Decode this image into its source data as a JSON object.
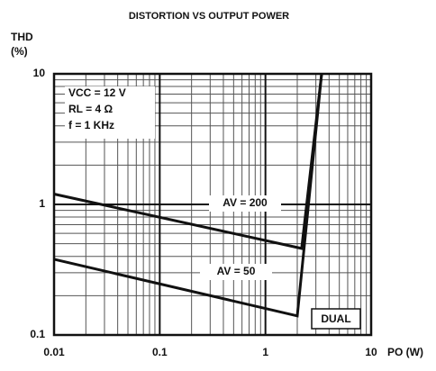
{
  "chart_data": {
    "type": "line",
    "title": "DISTORTION VS OUTPUT POWER",
    "ylabel": [
      "THD",
      "(%)"
    ],
    "xlabel": "PO (W)",
    "xscale": "log",
    "yscale": "log",
    "xlim": [
      0.01,
      10
    ],
    "ylim": [
      0.1,
      10
    ],
    "xticks": [
      0.01,
      0.1,
      1,
      10
    ],
    "yticks": [
      0.1,
      1,
      10
    ],
    "grid": true,
    "annotations": [
      "VCC = 12 V",
      "RL = 4 Ω",
      "f = 1 KHz",
      "DUAL"
    ],
    "series": [
      {
        "name": "AV = 200",
        "color": "#111111",
        "x": [
          0.01,
          2.2,
          3.4
        ],
        "values": [
          1.2,
          0.46,
          10
        ]
      },
      {
        "name": "AV = 50",
        "color": "#111111",
        "x": [
          0.01,
          2.0,
          3.4
        ],
        "values": [
          0.38,
          0.14,
          10
        ]
      }
    ]
  }
}
